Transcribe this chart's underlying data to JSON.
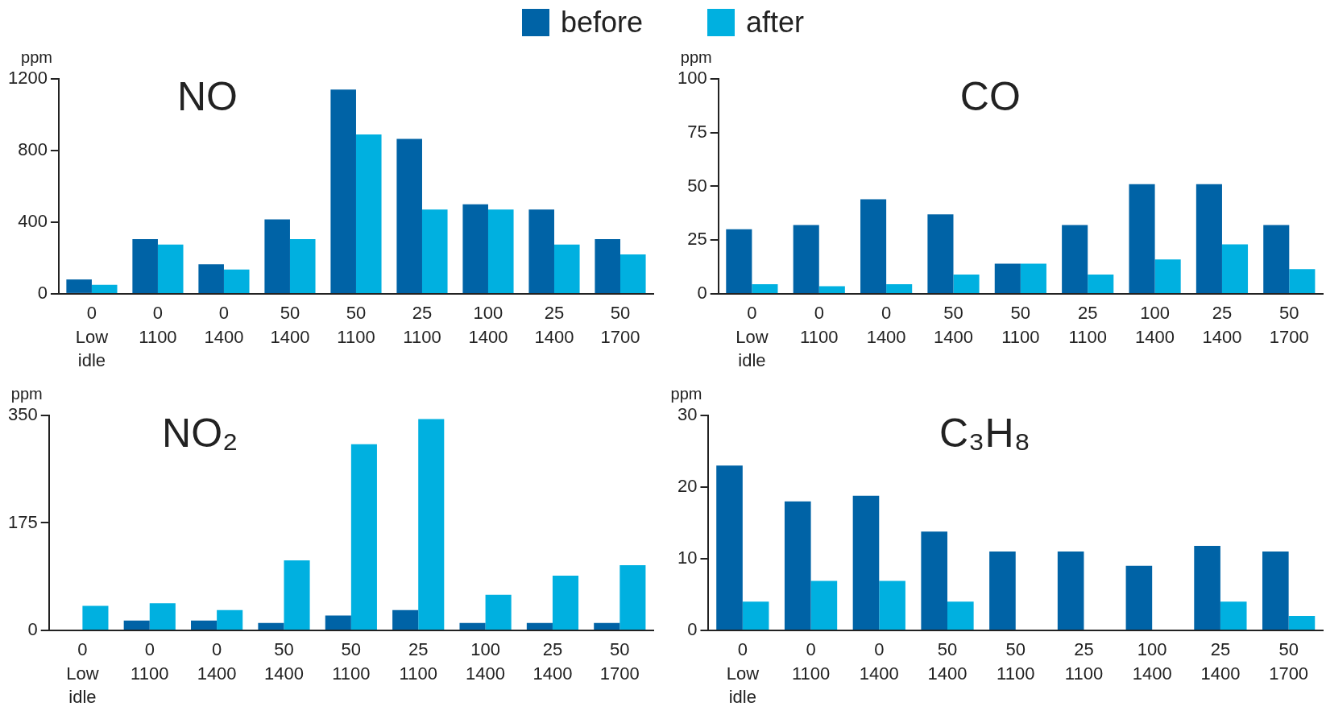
{
  "chart_data": [
    {
      "type": "bar",
      "title": "NO",
      "ylabel": "ppm",
      "legend": "top",
      "categories": [
        "0\nLow\nidle",
        "0\n1100",
        "0\n1400",
        "50\n1400",
        "50\n1100",
        "25\n1100",
        "100\n1400",
        "25\n1400",
        "50\n1700"
      ],
      "ylim": [
        0,
        1200
      ],
      "yticks": [
        0,
        400,
        800,
        1200
      ],
      "grid": false,
      "series": [
        {
          "name": "before",
          "color": "#0063a6",
          "values": [
            80,
            305,
            165,
            415,
            1140,
            865,
            500,
            470,
            305
          ]
        },
        {
          "name": "after",
          "color": "#00b0e0",
          "values": [
            50,
            275,
            135,
            305,
            890,
            470,
            470,
            275,
            220
          ]
        }
      ]
    },
    {
      "type": "bar",
      "title": "CO",
      "ylabel": "ppm",
      "categories": [
        "0\nLow\nidle",
        "0\n1100",
        "0\n1400",
        "50\n1400",
        "50\n1100",
        "25\n1100",
        "100\n1400",
        "25\n1400",
        "50\n1700"
      ],
      "ylim": [
        0,
        100
      ],
      "yticks": [
        0,
        25,
        50,
        75,
        100
      ],
      "grid": false,
      "series": [
        {
          "color": "#0063a6",
          "values": [
            30,
            32,
            44,
            37,
            14,
            32,
            51,
            51,
            32
          ]
        },
        {
          "color": "#00b0e0",
          "values": [
            4.5,
            3.5,
            4.5,
            9,
            14,
            9,
            16,
            23,
            11.5
          ]
        }
      ]
    },
    {
      "type": "bar",
      "title": "NO₂",
      "ylabel": "ppm",
      "categories": [
        "0\nLow\nidle",
        "0\n1100",
        "0\n1400",
        "50\n1400",
        "50\n1100",
        "25\n1100",
        "100\n1400",
        "25\n1400",
        "50\n1700"
      ],
      "ylim": [
        0,
        350
      ],
      "yticks": [
        0,
        175,
        350
      ],
      "grid": false,
      "series": [
        {
          "color": "#0063a6",
          "values": [
            null,
            16,
            16,
            12,
            24,
            33,
            12,
            12,
            12
          ]
        },
        {
          "color": "#00b0e0",
          "values": [
            40,
            44,
            33,
            114,
            303,
            344,
            58,
            89,
            106
          ]
        }
      ]
    },
    {
      "type": "bar",
      "title": "C₃H₈",
      "ylabel": "ppm",
      "categories": [
        "0\nLow\nidle",
        "0\n1100",
        "0\n1400",
        "50\n1400",
        "50\n1100",
        "25\n1100",
        "100\n1400",
        "25\n1400",
        "50\n1700"
      ],
      "ylim": [
        0,
        30
      ],
      "yticks": [
        0,
        10,
        20,
        30
      ],
      "grid": false,
      "series": [
        {
          "color": "#0063a6",
          "values": [
            23,
            18,
            18.8,
            13.8,
            11,
            11,
            9,
            11.8,
            11
          ]
        },
        {
          "color": "#00b0e0",
          "values": [
            4,
            6.9,
            6.9,
            4,
            null,
            null,
            null,
            4,
            2
          ]
        }
      ]
    }
  ]
}
